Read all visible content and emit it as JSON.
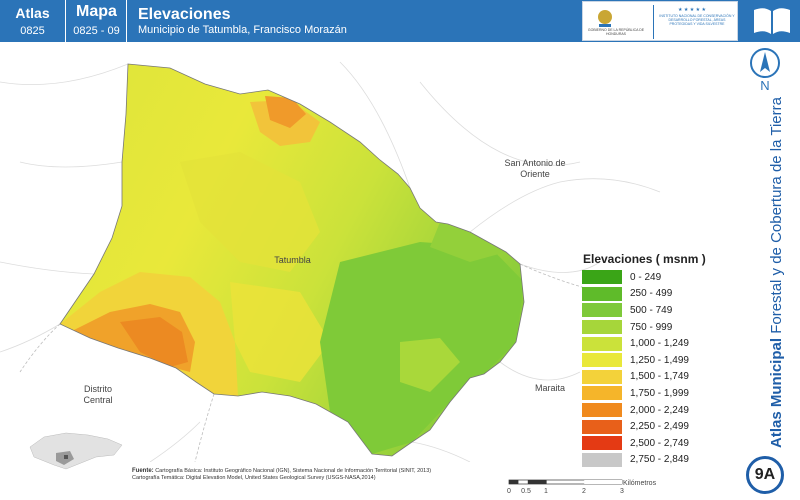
{
  "header": {
    "atlas_label": "Atlas",
    "atlas_number": "0825",
    "mapa_label": "Mapa",
    "mapa_number": "0825 - 09",
    "title": "Elevaciones",
    "subtitle": "Municipio de Tatumbla, Francisco Morazán",
    "logo_left_text": "GOBIERNO DE LA REPÚBLICA DE HONDURAS",
    "logo_right_text": "INSTITUTO NACIONAL DE CONSERVACIÓN Y DESARROLLO FORESTAL, ÁREAS PROTEGIDAS Y VIDA SILVESTRE"
  },
  "side": {
    "title_bold": "Atlas Municipal",
    "title_rest": " Forestal y de Cobertura de la Tierra",
    "north_label": "N",
    "badge": "9A"
  },
  "places": {
    "san_antonio": "San Antonio de Oriente",
    "tatumbla": "Tatumbla",
    "distrito": "Distrito Central",
    "maraita": "Maraita"
  },
  "legend": {
    "title": "Elevaciones ( msnm )",
    "items": [
      {
        "label": "0 - 249",
        "color": "#3aa517"
      },
      {
        "label": "250 - 499",
        "color": "#5fbb2a"
      },
      {
        "label": "500 - 749",
        "color": "#7ec93a"
      },
      {
        "label": "750 - 999",
        "color": "#a6d63a"
      },
      {
        "label": "1,000 - 1,249",
        "color": "#cbe23a"
      },
      {
        "label": "1,250 - 1,499",
        "color": "#e9e83a"
      },
      {
        "label": "1,500 - 1,749",
        "color": "#f3d23a"
      },
      {
        "label": "1,750 - 1,999",
        "color": "#f5b52a"
      },
      {
        "label": "2,000 - 2,249",
        "color": "#f08a1e"
      },
      {
        "label": "2,250 - 2,499",
        "color": "#e8601a"
      },
      {
        "label": "2,500 - 2,749",
        "color": "#e43a14"
      },
      {
        "label": "2,750 - 2,849",
        "color": "#c8c8c8"
      }
    ]
  },
  "scale": {
    "ticks": [
      "0",
      "0.5",
      "1",
      "2",
      "3"
    ],
    "unit": "Kilómetros"
  },
  "source": {
    "label": "Fuente:",
    "line1": "Cartografía Básica: Instituto Geográfico Nacional (IGN), Sistema Nacional de Información Territorial (SINIT, 2013)",
    "line2": "Cartografía Temática: Digital Elevation Model, United States Geological Survey (USGS-NASA,2014)"
  }
}
